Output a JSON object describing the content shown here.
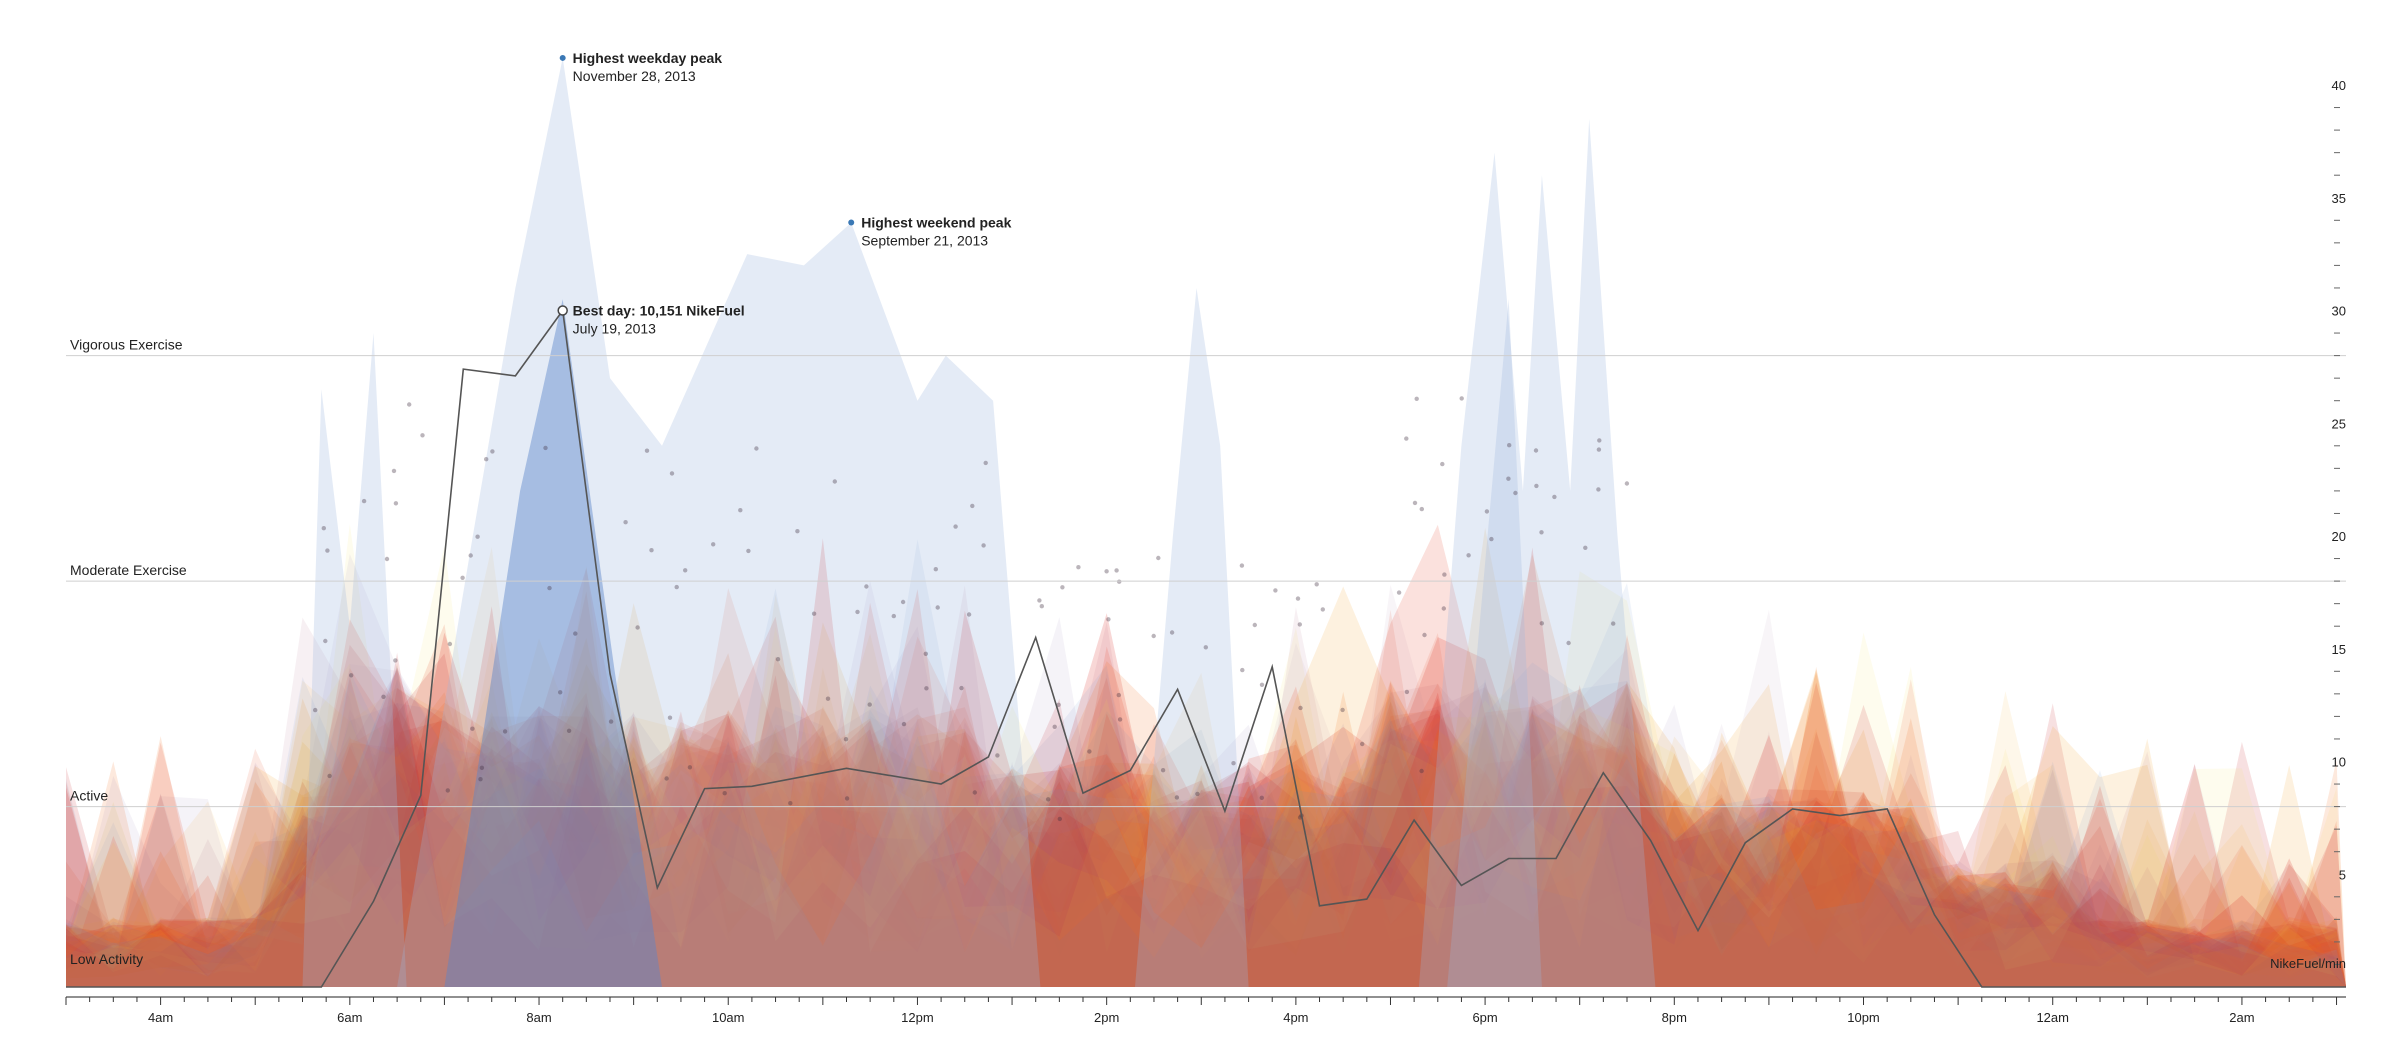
{
  "chart_data": {
    "type": "area",
    "title": "",
    "xlabel": "",
    "ylabel": "NikeFuel/min",
    "xlim_hours": [
      3,
      27.1
    ],
    "ylim": [
      0,
      40
    ],
    "grid": "horizontal reference lines at activity levels",
    "x_tick_labels": [
      {
        "hour": 4,
        "label": "4am"
      },
      {
        "hour": 6,
        "label": "6am"
      },
      {
        "hour": 8,
        "label": "8am"
      },
      {
        "hour": 10,
        "label": "10am"
      },
      {
        "hour": 12,
        "label": "12pm"
      },
      {
        "hour": 14,
        "label": "2pm"
      },
      {
        "hour": 16,
        "label": "4pm"
      },
      {
        "hour": 18,
        "label": "6pm"
      },
      {
        "hour": 20,
        "label": "8pm"
      },
      {
        "hour": 22,
        "label": "10pm"
      },
      {
        "hour": 24,
        "label": "12am"
      },
      {
        "hour": 26,
        "label": "2am"
      }
    ],
    "y_tick_labels": [
      {
        "value": 5,
        "label": "5"
      },
      {
        "value": 10,
        "label": "10"
      },
      {
        "value": 15,
        "label": "15"
      },
      {
        "value": 20,
        "label": "20"
      },
      {
        "value": 25,
        "label": "25"
      },
      {
        "value": 30,
        "label": "30"
      },
      {
        "value": 35,
        "label": "35"
      },
      {
        "value": 40,
        "label": "40"
      }
    ],
    "activity_bands": [
      {
        "label": "Vigorous Exercise",
        "value": 28
      },
      {
        "label": "Moderate Exercise",
        "value": 18
      },
      {
        "label": "Active",
        "value": 8
      },
      {
        "label": "Low Activity",
        "value": 0
      }
    ],
    "annotations": [
      {
        "title": "Highest weekday peak",
        "subtitle": "November 28, 2013",
        "hour": 8.25,
        "value": 41.2
      },
      {
        "title": "Highest weekend peak",
        "subtitle": "September 21, 2013",
        "hour": 11.3,
        "value": 33.9
      },
      {
        "title": "Best day: 10,151 NikeFuel",
        "subtitle": "July 19, 2013",
        "hour": 8.25,
        "value": 30.0
      }
    ],
    "colors": {
      "weekday": "#e8472a",
      "weekday_light": "#f39c1e",
      "weekend": "#5b86c9",
      "weekend_light": "#b9c8e8",
      "purple": "#c9a9c4",
      "yellow": "#f7e15a",
      "best_day_line": "#555555",
      "annotation_dot": "#3a78b5"
    },
    "series": [
      {
        "name": "Best day: 10,151 NikeFuel",
        "kind": "line",
        "x": [
          3,
          5.7,
          6.25,
          6.75,
          7.2,
          7.75,
          8.25,
          8.75,
          9.25,
          9.75,
          10.25,
          11.25,
          12.25,
          12.75,
          13.25,
          13.75,
          14.25,
          14.75,
          15.25,
          15.75,
          16.25,
          16.75,
          17.25,
          17.75,
          18.25,
          18.75,
          19.25,
          19.75,
          20.25,
          20.75,
          21.25,
          21.75,
          22.25,
          22.75,
          23.25,
          23.75,
          24.25,
          24.75,
          25.25,
          25.75,
          26.25,
          26.75,
          27.1
        ],
        "y": [
          0,
          0,
          3.8,
          8.5,
          27.4,
          27.1,
          30.0,
          13.9,
          4.4,
          8.8,
          8.9,
          9.7,
          9.0,
          10.2,
          15.5,
          8.6,
          9.6,
          13.2,
          7.8,
          14.2,
          3.6,
          3.9,
          7.4,
          4.5,
          5.7,
          5.7,
          9.5,
          6.5,
          2.5,
          6.4,
          7.9,
          7.6,
          7.9,
          3.2,
          0,
          0,
          0,
          0,
          0,
          0,
          0,
          0,
          0
        ]
      }
    ]
  }
}
